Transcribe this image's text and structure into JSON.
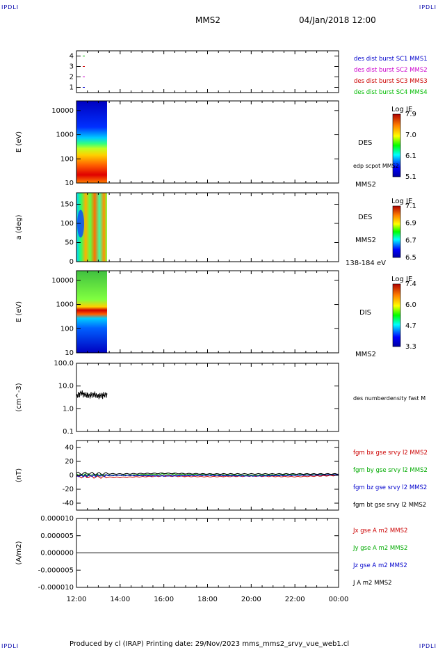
{
  "corners": {
    "tl": "IPDLI",
    "tr": "IPDLI",
    "bl": "IPDLI",
    "br": "IPDLI"
  },
  "header": {
    "title": "MMS2",
    "datetime": "04/Jan/2018 12:00"
  },
  "footer": {
    "text": "Produced by cl (IRAP)   Printing date: 29/Nov/2023   mms_mms2_srvy_vue_web1.cl"
  },
  "colors": {
    "frame": "#000000",
    "c1": "#0000cc",
    "c2": "#cc00cc",
    "c3": "#cc0000",
    "c4": "#00bb00"
  },
  "chart_data": [
    {
      "type": "scatter",
      "panel": "burst-availability",
      "yticks": [
        "4",
        "3",
        "2",
        "1"
      ],
      "ylim": [
        0.5,
        4.5
      ],
      "legend": [
        {
          "name": "des dist burst SC1 MMS1",
          "color": "#0000cc"
        },
        {
          "name": "des dist burst SC2 MMS2",
          "color": "#cc00cc"
        },
        {
          "name": "des dist burst SC3 MMS3",
          "color": "#cc0000"
        },
        {
          "name": "des dist burst SC4 MMS4",
          "color": "#00bb00"
        }
      ]
    },
    {
      "type": "heatmap",
      "panel": "des-energy",
      "ylabel": "E (eV)",
      "yscale": "log",
      "yticks": [
        "10000",
        "1000",
        "100",
        "10"
      ],
      "ylim": [
        10,
        25000
      ],
      "xlim_hours": [
        12.0,
        13.4
      ],
      "right_labels": [
        "DES",
        "edp scpot MMS2",
        "MMS2"
      ],
      "colorbar": {
        "title": "Log JE",
        "ticks": [
          "7.9",
          "7.0",
          "6.1",
          "5.1"
        ],
        "range": [
          5.1,
          7.9
        ]
      }
    },
    {
      "type": "heatmap",
      "panel": "des-pitch-angle",
      "ylabel": "a (deg)",
      "yticks": [
        "150",
        "100",
        "50",
        "0"
      ],
      "ylim": [
        0,
        180
      ],
      "xlim_hours": [
        12.0,
        13.4
      ],
      "right_labels": [
        "DES",
        "MMS2",
        "138-184 eV"
      ],
      "colorbar": {
        "title": "Log JE",
        "ticks": [
          "7.1",
          "6.9",
          "6.7",
          "6.5"
        ],
        "range": [
          6.5,
          7.1
        ]
      }
    },
    {
      "type": "heatmap",
      "panel": "dis-energy",
      "ylabel": "E (eV)",
      "yscale": "log",
      "yticks": [
        "10000",
        "1000",
        "100",
        "10"
      ],
      "ylim": [
        10,
        25000
      ],
      "xlim_hours": [
        12.0,
        13.4
      ],
      "right_labels": [
        "DIS",
        "MMS2"
      ],
      "colorbar": {
        "title": "Log JE",
        "ticks": [
          "7.4",
          "6.0",
          "4.7",
          "3.3"
        ],
        "range": [
          3.3,
          7.4
        ]
      }
    },
    {
      "type": "line",
      "panel": "density",
      "ylabel": "(cm^-3)",
      "yscale": "log",
      "yticks": [
        "100.0",
        "10.0",
        "1.0",
        "0.1"
      ],
      "ylim": [
        0.1,
        100
      ],
      "series": [
        {
          "name": "des numberdensity fast M",
          "color": "#000000",
          "x": [
            12.0,
            12.2,
            12.4,
            12.6,
            12.8,
            13.0,
            13.2,
            13.4
          ],
          "y": [
            3.5,
            5.0,
            4.2,
            3.8,
            4.5,
            3.6,
            4.0,
            4.3
          ]
        }
      ]
    },
    {
      "type": "line",
      "panel": "magnetic-field",
      "ylabel": "(nT)",
      "yticks": [
        "40",
        "20",
        "0",
        "-20",
        "-40"
      ],
      "ylim": [
        -50,
        50
      ],
      "series": [
        {
          "name": "fgm bx gse srvy l2 MMS2",
          "color": "#cc0000",
          "x": [
            12,
            14,
            16,
            18,
            20,
            22,
            24
          ],
          "y": [
            -2,
            -3,
            -1,
            -2,
            -1,
            -2,
            0
          ]
        },
        {
          "name": "fgm by gse srvy l2 MMS2",
          "color": "#00aa00",
          "x": [
            12,
            14,
            16,
            18,
            20,
            22,
            24
          ],
          "y": [
            1,
            0,
            2,
            1,
            0,
            1,
            1
          ]
        },
        {
          "name": "fgm bz gse srvy l2 MMS2",
          "color": "#0000cc",
          "x": [
            12,
            14,
            16,
            18,
            20,
            22,
            24
          ],
          "y": [
            -1,
            0,
            -1,
            0,
            -1,
            0,
            1
          ]
        },
        {
          "name": "fgm bt gse srvy l2 MMS2",
          "color": "#000000",
          "x": [
            12,
            14,
            16,
            18,
            20,
            22,
            24
          ],
          "y": [
            3,
            2,
            3,
            2,
            2,
            2,
            2
          ]
        }
      ]
    },
    {
      "type": "line",
      "panel": "current-density",
      "ylabel": "(A/m2)",
      "yticks": [
        "0.000010",
        "0.000005",
        "0.000000",
        "-0.000005",
        "-0.000010"
      ],
      "ylim": [
        -1e-05,
        1e-05
      ],
      "series": [
        {
          "name": "Jx gse A m2 MMS2",
          "color": "#cc0000",
          "x": [
            12,
            24
          ],
          "y": [
            0,
            0
          ]
        },
        {
          "name": "Jy gse A m2 MMS2",
          "color": "#00aa00",
          "x": [
            12,
            24
          ],
          "y": [
            0,
            0
          ]
        },
        {
          "name": "Jz gse A m2 MMS2",
          "color": "#0000cc",
          "x": [
            12,
            24
          ],
          "y": [
            0,
            0
          ]
        },
        {
          "name": "J A m2 MMS2",
          "color": "#000000",
          "x": [
            12,
            24
          ],
          "y": [
            0,
            0
          ]
        }
      ]
    }
  ],
  "xaxis": {
    "ticks": [
      "12:00",
      "14:00",
      "16:00",
      "18:00",
      "20:00",
      "22:00",
      "00:00"
    ],
    "xlim_hours": [
      12,
      24
    ]
  }
}
